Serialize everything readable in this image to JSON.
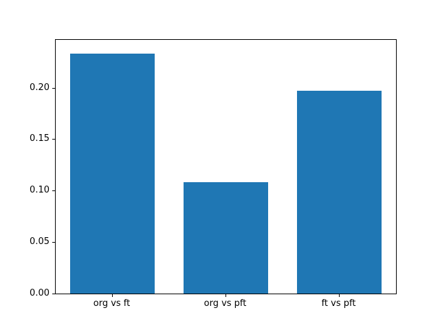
{
  "chart_data": {
    "type": "bar",
    "categories": [
      "org vs ft",
      "org vs pft",
      "ft vs pft"
    ],
    "values": [
      0.233,
      0.108,
      0.197
    ],
    "title": "",
    "xlabel": "",
    "ylabel": "",
    "ylim": [
      0,
      0.2465
    ],
    "yticks": [
      0.0,
      0.05,
      0.1,
      0.15,
      0.2
    ],
    "ytick_labels": [
      "0.00",
      "0.05",
      "0.10",
      "0.15",
      "0.20"
    ],
    "bar_color": "#1f77b4",
    "bar_width_fraction": 0.75,
    "grid": false,
    "legend": "none",
    "background_color": "#ffffff",
    "axis_color": "#000000"
  }
}
